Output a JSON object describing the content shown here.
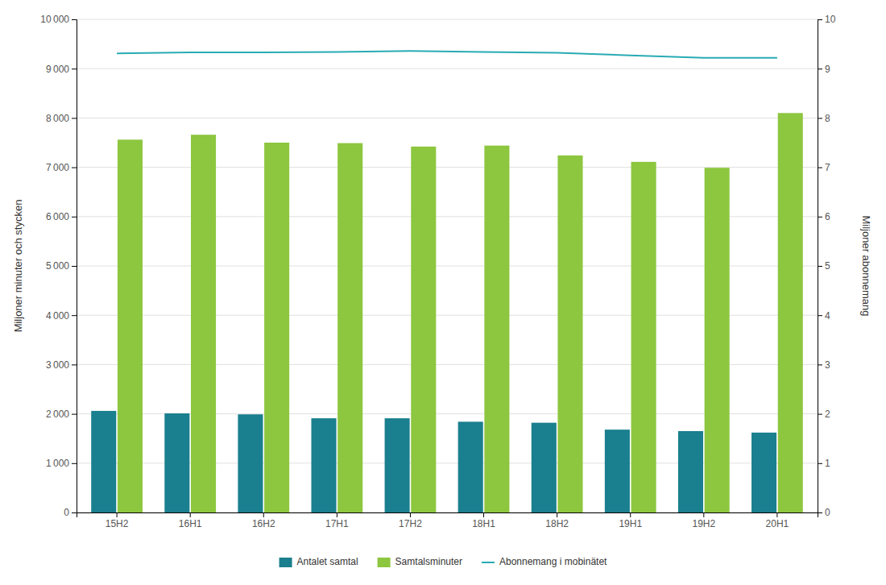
{
  "chart_data": {
    "type": "bar",
    "categories": [
      "15H2",
      "16H1",
      "16H2",
      "17H1",
      "17H2",
      "18H1",
      "18H2",
      "19H1",
      "19H2",
      "20H1"
    ],
    "series": [
      {
        "name": "Antalet samtal",
        "color": "#1a7f8e",
        "type": "bar",
        "values": [
          2060,
          2010,
          1990,
          1910,
          1910,
          1840,
          1820,
          1680,
          1650,
          1620
        ]
      },
      {
        "name": "Samtalsminuter",
        "color": "#8dc63f",
        "type": "bar",
        "values": [
          7560,
          7660,
          7500,
          7490,
          7420,
          7440,
          7240,
          7110,
          6990,
          8100
        ]
      },
      {
        "name": "Abonnemang i mobinätet",
        "color": "#29abb4",
        "type": "line",
        "axis": "y2",
        "values": [
          9.31,
          9.33,
          9.33,
          9.34,
          9.36,
          9.34,
          9.32,
          9.27,
          9.22,
          9.22
        ]
      }
    ],
    "ylabel": "Miljoner minuter och stycken",
    "y2label": "Miljoner abonnemang",
    "ylim": [
      0,
      10000
    ],
    "yticks": [
      0,
      {
        "value": 1000,
        "label": "1 000"
      },
      {
        "value": 2000,
        "label": "2 000"
      },
      {
        "value": 3000,
        "label": "3 000"
      },
      {
        "value": 4000,
        "label": "4 000"
      },
      {
        "value": 5000,
        "label": "5 000"
      },
      {
        "value": 6000,
        "label": "6 000"
      },
      {
        "value": 7000,
        "label": "7 000"
      },
      {
        "value": 8000,
        "label": "8 000"
      },
      {
        "value": 9000,
        "label": "9 000"
      },
      {
        "value": 10000,
        "label": "10 000"
      }
    ],
    "y2lim": [
      0,
      10
    ],
    "y2ticks": [
      0,
      1,
      2,
      3,
      4,
      5,
      6,
      7,
      8,
      9,
      10
    ],
    "grid": true,
    "legend": "bottom"
  }
}
